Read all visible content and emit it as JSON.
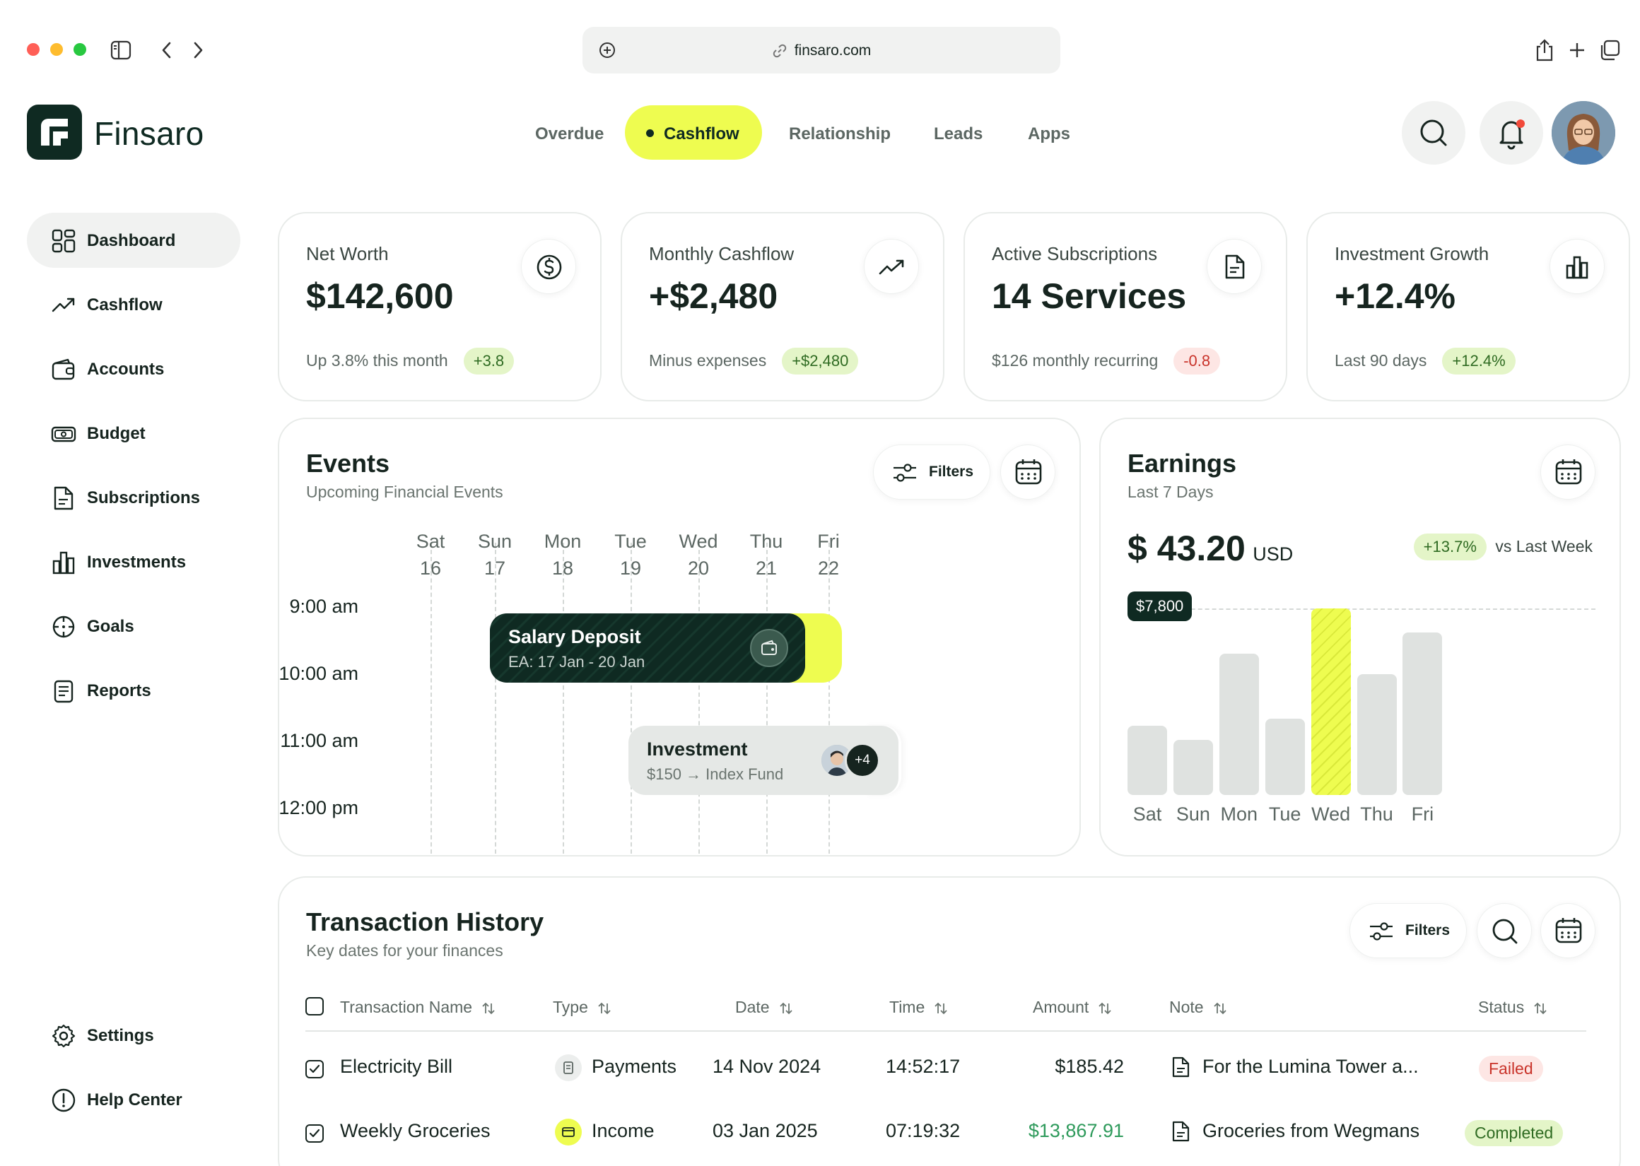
{
  "browser": {
    "url": "finsaro.com"
  },
  "brand": {
    "name": "Finsaro"
  },
  "topnav": {
    "items": [
      "Overdue",
      "Cashflow",
      "Relationship",
      "Leads",
      "Apps"
    ],
    "active": "Cashflow"
  },
  "sidebar": {
    "items": [
      "Dashboard",
      "Cashflow",
      "Accounts",
      "Budget",
      "Subscriptions",
      "Investments",
      "Goals",
      "Reports"
    ],
    "bottom": [
      "Settings",
      "Help Center"
    ]
  },
  "stats": [
    {
      "title": "Net Worth",
      "value": "$142,600",
      "sub": "Up 3.8% this month",
      "badge": "+3.8",
      "badge_tone": "green",
      "icon": "dollar-icon"
    },
    {
      "title": "Monthly Cashflow",
      "value": "+$2,480",
      "sub": "Minus expenses",
      "badge": "+$2,480",
      "badge_tone": "green",
      "icon": "trend-up-icon"
    },
    {
      "title": "Active Subscriptions",
      "value": "14 Services",
      "sub": "$126 monthly recurring",
      "badge": "-0.8",
      "badge_tone": "red",
      "icon": "document-icon"
    },
    {
      "title": "Investment Growth",
      "value": "+12.4%",
      "sub": "Last 90 days",
      "badge": "+12.4%",
      "badge_tone": "green",
      "icon": "bar-chart-icon"
    }
  ],
  "events": {
    "title": "Events",
    "subtitle": "Upcoming Financial Events",
    "filters_label": "Filters",
    "days": [
      {
        "name": "Sat",
        "num": "16"
      },
      {
        "name": "Sun",
        "num": "17"
      },
      {
        "name": "Mon",
        "num": "18"
      },
      {
        "name": "Tue",
        "num": "19"
      },
      {
        "name": "Wed",
        "num": "20"
      },
      {
        "name": "Thu",
        "num": "21"
      },
      {
        "name": "Fri",
        "num": "22"
      }
    ],
    "times": [
      "9:00 am",
      "10:00 am",
      "11:00 am",
      "12:00 pm"
    ],
    "salary": {
      "title": "Salary Deposit",
      "sub": "EA: 17 Jan - 20 Jan"
    },
    "investment": {
      "title": "Investment",
      "sub": "$150 → Index Fund",
      "extra": "+4"
    }
  },
  "earnings": {
    "title": "Earnings",
    "subtitle": "Last 7 Days",
    "amount": "$ 43.20",
    "currency": "USD",
    "change": "+13.7%",
    "compare": "vs Last Week",
    "tooltip": "$7,800",
    "highlight_index": 4
  },
  "chart_data": {
    "type": "bar",
    "categories": [
      "Sat",
      "Sun",
      "Mon",
      "Tue",
      "Wed",
      "Thu",
      "Fri"
    ],
    "values": [
      2900,
      2300,
      5900,
      3200,
      7800,
      5050,
      6800
    ],
    "ylim": [
      0,
      7800
    ]
  },
  "transactions": {
    "title": "Transaction History",
    "subtitle": "Key dates for your finances",
    "filters_label": "Filters",
    "headers": [
      "Transaction Name",
      "Type",
      "Date",
      "Time",
      "Amount",
      "Note",
      "Status"
    ],
    "rows": [
      {
        "name": "Electricity Bill",
        "type": "Payments",
        "date": "14 Nov 2024",
        "time": "14:52:17",
        "amount": "$185.42",
        "amount_color": "#16241f",
        "note": "For the Lumina Tower a...",
        "status": "Failed",
        "status_tone": "red"
      },
      {
        "name": "Weekly Groceries",
        "type": "Income",
        "date": "03 Jan 2025",
        "time": "07:19:32",
        "amount": "$13,867.91",
        "amount_color": "#2e9a5b",
        "note": "Groceries from Wegmans",
        "status": "Completed",
        "status_tone": "green"
      }
    ]
  }
}
